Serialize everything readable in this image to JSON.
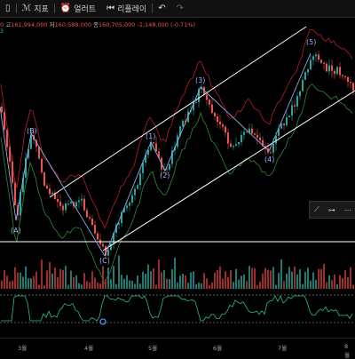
{
  "toolbar": {
    "items": [
      {
        "icon": "candle-icon",
        "label": ""
      },
      {
        "icon": "indicator-icon",
        "label": "지표"
      },
      {
        "icon": "alert-icon",
        "label": "얼러트"
      },
      {
        "icon": "replay-icon",
        "label": "리플레이"
      }
    ],
    "undo_icon": "undo-icon",
    "redo_icon": "redo-icon"
  },
  "ohlc": {
    "open_frag": "0",
    "high_label": "고",
    "high_value": "161,994,000",
    "low_label": "저",
    "low_value": "160,589,000",
    "close_label": "종",
    "close_value": "160,705,000",
    "change": "-1,148,000 (-0.71%)"
  },
  "indicator_label": "3",
  "wave_labels": {
    "A": "(A)",
    "B": "(B)",
    "C": "(C)",
    "w1": "(1)",
    "w2": "(2)",
    "w3": "(3)",
    "w4": "(4)",
    "w5": "(5)"
  },
  "x_labels": [
    "3월",
    "4월",
    "5월",
    "6월",
    "7월",
    "8월"
  ],
  "floating_toolbar": {
    "icons": [
      "trendline-icon",
      "horizontal-line-icon",
      "more-icon"
    ]
  },
  "colors": {
    "up": "#26a69a",
    "down": "#ef5350",
    "band": "#b71c2c",
    "wave": "#8fa8e8",
    "channel": "#ffffff",
    "rsi": "#26c281"
  }
}
